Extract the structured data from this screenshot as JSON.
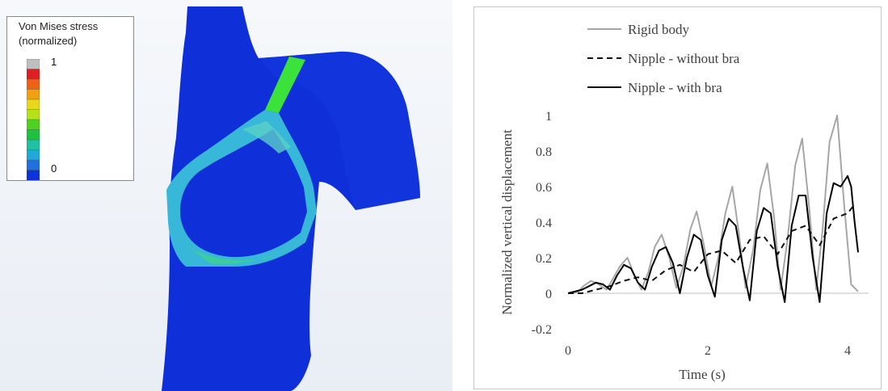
{
  "stress_legend": {
    "title_line1": "Von Mises stress",
    "title_line2": "(normalized)",
    "max_label": "1",
    "min_label": "0",
    "colors": [
      "#bfbfbf",
      "#e02020",
      "#f06018",
      "#f0a010",
      "#e8d818",
      "#b8e018",
      "#50d020",
      "#20c040",
      "#20c0a0",
      "#20a8d8",
      "#2070e0",
      "#1030d8"
    ]
  },
  "chart_data": {
    "type": "line",
    "xlabel": "Time (s)",
    "ylabel": "Normalized vertical displacement",
    "xlim": [
      0,
      4.3
    ],
    "ylim": [
      -0.2,
      1
    ],
    "xticks": [
      0,
      2,
      4
    ],
    "yticks": [
      -0.2,
      0,
      0.2,
      0.4,
      0.6,
      0.8,
      1
    ],
    "grid": false,
    "legend_position": "top-left",
    "series": [
      {
        "name": "Rigid body",
        "color": "#a6a6a6",
        "style": "solid",
        "x": [
          0,
          0.15,
          0.22,
          0.33,
          0.44,
          0.55,
          0.64,
          0.74,
          0.85,
          0.95,
          1.05,
          1.15,
          1.24,
          1.34,
          1.45,
          1.55,
          1.65,
          1.75,
          1.84,
          1.94,
          2.05,
          2.15,
          2.25,
          2.35,
          2.44,
          2.54,
          2.65,
          2.75,
          2.85,
          2.95,
          3.04,
          3.14,
          3.25,
          3.35,
          3.45,
          3.55,
          3.64,
          3.74,
          3.85,
          3.95,
          4.05,
          4.15
        ],
        "y": [
          0,
          0.01,
          0.04,
          0.07,
          0.05,
          0.02,
          0.08,
          0.15,
          0.2,
          0.1,
          0.02,
          0.12,
          0.26,
          0.33,
          0.2,
          0.03,
          0.15,
          0.36,
          0.46,
          0.28,
          0.04,
          0.2,
          0.45,
          0.6,
          0.35,
          0.03,
          0.25,
          0.58,
          0.73,
          0.42,
          0.02,
          0.3,
          0.72,
          0.87,
          0.48,
          0.02,
          0.35,
          0.85,
          1.0,
          0.5,
          0.05,
          0.01
        ]
      },
      {
        "name": "Nipple - without bra",
        "color": "#111111",
        "style": "dashed",
        "x": [
          0,
          0.2,
          0.4,
          0.6,
          0.8,
          1.0,
          1.2,
          1.4,
          1.6,
          1.8,
          2.0,
          2.2,
          2.4,
          2.6,
          2.8,
          3.0,
          3.2,
          3.4,
          3.6,
          3.8,
          4.0,
          4.1
        ],
        "y": [
          0,
          0.0,
          0.02,
          0.04,
          0.07,
          0.09,
          0.07,
          0.13,
          0.16,
          0.12,
          0.22,
          0.24,
          0.17,
          0.3,
          0.32,
          0.22,
          0.35,
          0.38,
          0.27,
          0.42,
          0.45,
          0.5
        ]
      },
      {
        "name": "Nipple - with bra",
        "color": "#000000",
        "style": "solid",
        "x": [
          0,
          0.2,
          0.3,
          0.4,
          0.5,
          0.6,
          0.7,
          0.8,
          0.9,
          1.0,
          1.1,
          1.2,
          1.3,
          1.4,
          1.5,
          1.6,
          1.7,
          1.8,
          1.9,
          2.0,
          2.1,
          2.2,
          2.3,
          2.4,
          2.5,
          2.6,
          2.7,
          2.8,
          2.9,
          3.0,
          3.1,
          3.2,
          3.3,
          3.4,
          3.5,
          3.6,
          3.7,
          3.8,
          3.9,
          4.0,
          4.05,
          4.1,
          4.15
        ],
        "y": [
          0,
          0.02,
          0.04,
          0.06,
          0.05,
          0.02,
          0.1,
          0.16,
          0.14,
          0.06,
          0.02,
          0.15,
          0.24,
          0.26,
          0.17,
          0.0,
          0.2,
          0.33,
          0.3,
          0.1,
          -0.02,
          0.3,
          0.42,
          0.38,
          0.15,
          -0.04,
          0.35,
          0.48,
          0.45,
          0.15,
          -0.05,
          0.38,
          0.55,
          0.55,
          0.2,
          -0.05,
          0.45,
          0.62,
          0.6,
          0.66,
          0.6,
          0.4,
          0.23
        ]
      }
    ]
  }
}
